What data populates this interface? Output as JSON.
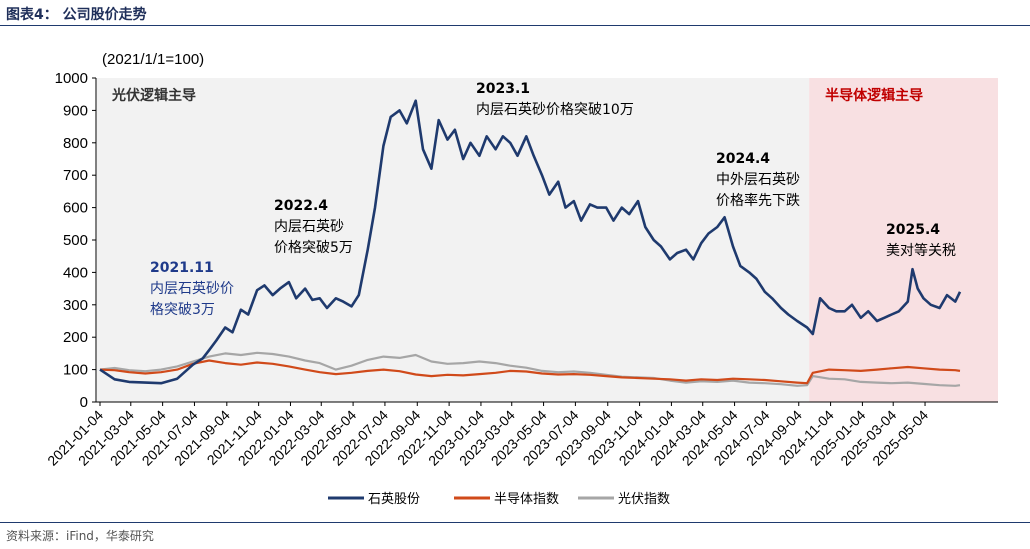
{
  "header": {
    "title": "图表4： 公司股价走势"
  },
  "source": {
    "text": "资料来源：iFind，华泰研究"
  },
  "chart_data": {
    "type": "line",
    "unit_label": "(2021/1/1=100)",
    "ylim": [
      0,
      1000
    ],
    "yticks": [
      0,
      100,
      200,
      300,
      400,
      500,
      600,
      700,
      800,
      900,
      1000
    ],
    "x_tick_labels": [
      "2021-01-04",
      "2021-03-04",
      "2021-05-04",
      "2021-07-04",
      "2021-09-04",
      "2021-11-04",
      "2022-01-04",
      "2022-03-04",
      "2022-05-04",
      "2022-07-04",
      "2022-09-04",
      "2022-11-04",
      "2023-01-04",
      "2023-03-04",
      "2023-05-04",
      "2023-07-04",
      "2023-09-04",
      "2023-11-04",
      "2024-01-04",
      "2024-03-04",
      "2024-05-04",
      "2024-07-04",
      "2024-09-04",
      "2024-11-04",
      "2025-01-04",
      "2025-03-04",
      "2025-05-04"
    ],
    "regions": [
      {
        "label": "光伏逻辑主导",
        "from": "2021-01-04",
        "to": "2024-09-24",
        "color": "#f2f2f2",
        "text_color": "#333333"
      },
      {
        "label": "半导体逻辑主导",
        "from": "2024-09-24",
        "to": "2025-07-10",
        "color": "#f8e0e2",
        "text_color": "#c00000"
      }
    ],
    "annotations": [
      {
        "title": "2021.11",
        "lines": [
          "内层石英砂价",
          "格突破3万"
        ],
        "color": "#1f3a8a"
      },
      {
        "title": "2022.4",
        "lines": [
          "内层石英砂",
          "价格突破5万"
        ],
        "color": "#000000"
      },
      {
        "title": "2023.1",
        "lines": [
          "内层石英砂价格突破10万"
        ],
        "color": "#000000"
      },
      {
        "title": "2024.4",
        "lines": [
          "中外层石英砂",
          "价格率先下跌"
        ],
        "color": "#000000"
      },
      {
        "title": "2025.4",
        "lines": [
          "美对等关税"
        ],
        "color": "#000000"
      }
    ],
    "legend_position": "bottom",
    "series": [
      {
        "name": "石英股份",
        "color": "#1f3a6e",
        "x": [
          "2021-01-04",
          "2021-02-01",
          "2021-03-01",
          "2021-04-01",
          "2021-05-01",
          "2021-06-01",
          "2021-07-01",
          "2021-07-20",
          "2021-08-01",
          "2021-08-15",
          "2021-09-01",
          "2021-09-15",
          "2021-10-01",
          "2021-10-15",
          "2021-11-01",
          "2021-11-15",
          "2021-12-01",
          "2021-12-15",
          "2022-01-01",
          "2022-01-15",
          "2022-02-01",
          "2022-02-15",
          "2022-03-01",
          "2022-03-15",
          "2022-04-01",
          "2022-04-15",
          "2022-05-01",
          "2022-05-15",
          "2022-06-01",
          "2022-06-15",
          "2022-07-01",
          "2022-07-15",
          "2022-08-01",
          "2022-08-15",
          "2022-09-01",
          "2022-09-15",
          "2022-10-01",
          "2022-10-15",
          "2022-11-01",
          "2022-11-15",
          "2022-12-01",
          "2022-12-15",
          "2023-01-01",
          "2023-01-15",
          "2023-02-01",
          "2023-02-15",
          "2023-03-01",
          "2023-03-15",
          "2023-04-01",
          "2023-04-15",
          "2023-05-01",
          "2023-05-15",
          "2023-06-01",
          "2023-06-15",
          "2023-07-01",
          "2023-07-15",
          "2023-08-01",
          "2023-08-15",
          "2023-09-01",
          "2023-09-15",
          "2023-10-01",
          "2023-10-15",
          "2023-11-01",
          "2023-11-15",
          "2023-12-01",
          "2023-12-15",
          "2024-01-01",
          "2024-01-15",
          "2024-02-01",
          "2024-02-15",
          "2024-03-01",
          "2024-03-15",
          "2024-04-01",
          "2024-04-15",
          "2024-05-01",
          "2024-05-15",
          "2024-06-01",
          "2024-06-15",
          "2024-07-01",
          "2024-07-15",
          "2024-08-01",
          "2024-08-15",
          "2024-09-01",
          "2024-09-20",
          "2024-10-01",
          "2024-10-15",
          "2024-11-01",
          "2024-11-15",
          "2024-12-01",
          "2024-12-15",
          "2025-01-01",
          "2025-01-15",
          "2025-02-01",
          "2025-02-15",
          "2025-03-01",
          "2025-03-15",
          "2025-04-01",
          "2025-04-10",
          "2025-04-20",
          "2025-05-01",
          "2025-05-15",
          "2025-06-01",
          "2025-06-15",
          "2025-07-01",
          "2025-07-10"
        ],
        "values": [
          100,
          70,
          62,
          60,
          58,
          72,
          115,
          135,
          160,
          190,
          230,
          215,
          285,
          270,
          345,
          360,
          330,
          350,
          370,
          320,
          350,
          315,
          320,
          290,
          320,
          310,
          295,
          330,
          470,
          600,
          790,
          880,
          900,
          860,
          930,
          780,
          720,
          870,
          810,
          840,
          750,
          800,
          760,
          820,
          780,
          820,
          800,
          760,
          820,
          760,
          700,
          640,
          680,
          600,
          620,
          560,
          610,
          600,
          600,
          560,
          600,
          580,
          620,
          540,
          500,
          480,
          440,
          460,
          470,
          440,
          490,
          520,
          540,
          570,
          480,
          420,
          400,
          380,
          340,
          320,
          290,
          270,
          250,
          230,
          210,
          320,
          290,
          280,
          280,
          300,
          260,
          280,
          250,
          260,
          270,
          280,
          310,
          410,
          350,
          320,
          300,
          290,
          330,
          310,
          340
        ]
      },
      {
        "name": "半导体指数",
        "color": "#d04a1a",
        "x": [
          "2021-01-04",
          "2021-02-01",
          "2021-03-01",
          "2021-04-01",
          "2021-05-01",
          "2021-06-01",
          "2021-07-01",
          "2021-08-01",
          "2021-09-01",
          "2021-10-01",
          "2021-11-01",
          "2021-12-01",
          "2022-01-01",
          "2022-02-01",
          "2022-03-01",
          "2022-04-01",
          "2022-05-01",
          "2022-06-01",
          "2022-07-01",
          "2022-08-01",
          "2022-09-01",
          "2022-10-01",
          "2022-11-01",
          "2022-12-01",
          "2023-01-01",
          "2023-02-01",
          "2023-03-01",
          "2023-04-01",
          "2023-05-01",
          "2023-06-01",
          "2023-07-01",
          "2023-08-01",
          "2023-09-01",
          "2023-10-01",
          "2023-11-01",
          "2023-12-01",
          "2024-01-01",
          "2024-02-01",
          "2024-03-01",
          "2024-04-01",
          "2024-05-01",
          "2024-06-01",
          "2024-07-01",
          "2024-08-01",
          "2024-09-01",
          "2024-09-20",
          "2024-10-01",
          "2024-11-01",
          "2024-12-01",
          "2025-01-01",
          "2025-02-01",
          "2025-03-01",
          "2025-04-01",
          "2025-05-01",
          "2025-06-01",
          "2025-07-01",
          "2025-07-10"
        ],
        "values": [
          100,
          98,
          92,
          88,
          92,
          100,
          118,
          128,
          120,
          115,
          122,
          118,
          110,
          100,
          92,
          86,
          90,
          96,
          100,
          95,
          85,
          80,
          84,
          82,
          86,
          90,
          96,
          94,
          88,
          85,
          86,
          84,
          80,
          76,
          74,
          72,
          70,
          66,
          70,
          68,
          72,
          70,
          68,
          64,
          60,
          58,
          90,
          100,
          98,
          96,
          100,
          104,
          108,
          104,
          100,
          98,
          96
        ]
      },
      {
        "name": "光伏指数",
        "color": "#a6a6a6",
        "x": [
          "2021-01-04",
          "2021-02-01",
          "2021-03-01",
          "2021-04-01",
          "2021-05-01",
          "2021-06-01",
          "2021-07-01",
          "2021-08-01",
          "2021-09-01",
          "2021-10-01",
          "2021-11-01",
          "2021-12-01",
          "2022-01-01",
          "2022-02-01",
          "2022-03-01",
          "2022-04-01",
          "2022-05-01",
          "2022-06-01",
          "2022-07-01",
          "2022-08-01",
          "2022-09-01",
          "2022-10-01",
          "2022-11-01",
          "2022-12-01",
          "2023-01-01",
          "2023-02-01",
          "2023-03-01",
          "2023-04-01",
          "2023-05-01",
          "2023-06-01",
          "2023-07-01",
          "2023-08-01",
          "2023-09-01",
          "2023-10-01",
          "2023-11-01",
          "2023-12-01",
          "2024-01-01",
          "2024-02-01",
          "2024-03-01",
          "2024-04-01",
          "2024-05-01",
          "2024-06-01",
          "2024-07-01",
          "2024-08-01",
          "2024-09-01",
          "2024-09-20",
          "2024-10-01",
          "2024-11-01",
          "2024-12-01",
          "2025-01-01",
          "2025-02-01",
          "2025-03-01",
          "2025-04-01",
          "2025-05-01",
          "2025-06-01",
          "2025-07-01",
          "2025-07-10"
        ],
        "values": [
          100,
          105,
          98,
          95,
          100,
          110,
          125,
          140,
          150,
          145,
          152,
          148,
          140,
          128,
          120,
          100,
          112,
          130,
          140,
          136,
          145,
          125,
          118,
          120,
          125,
          120,
          112,
          106,
          96,
          92,
          94,
          90,
          84,
          78,
          76,
          74,
          66,
          60,
          64,
          62,
          66,
          60,
          58,
          55,
          50,
          52,
          80,
          72,
          70,
          62,
          60,
          58,
          60,
          56,
          52,
          50,
          52
        ]
      }
    ]
  }
}
